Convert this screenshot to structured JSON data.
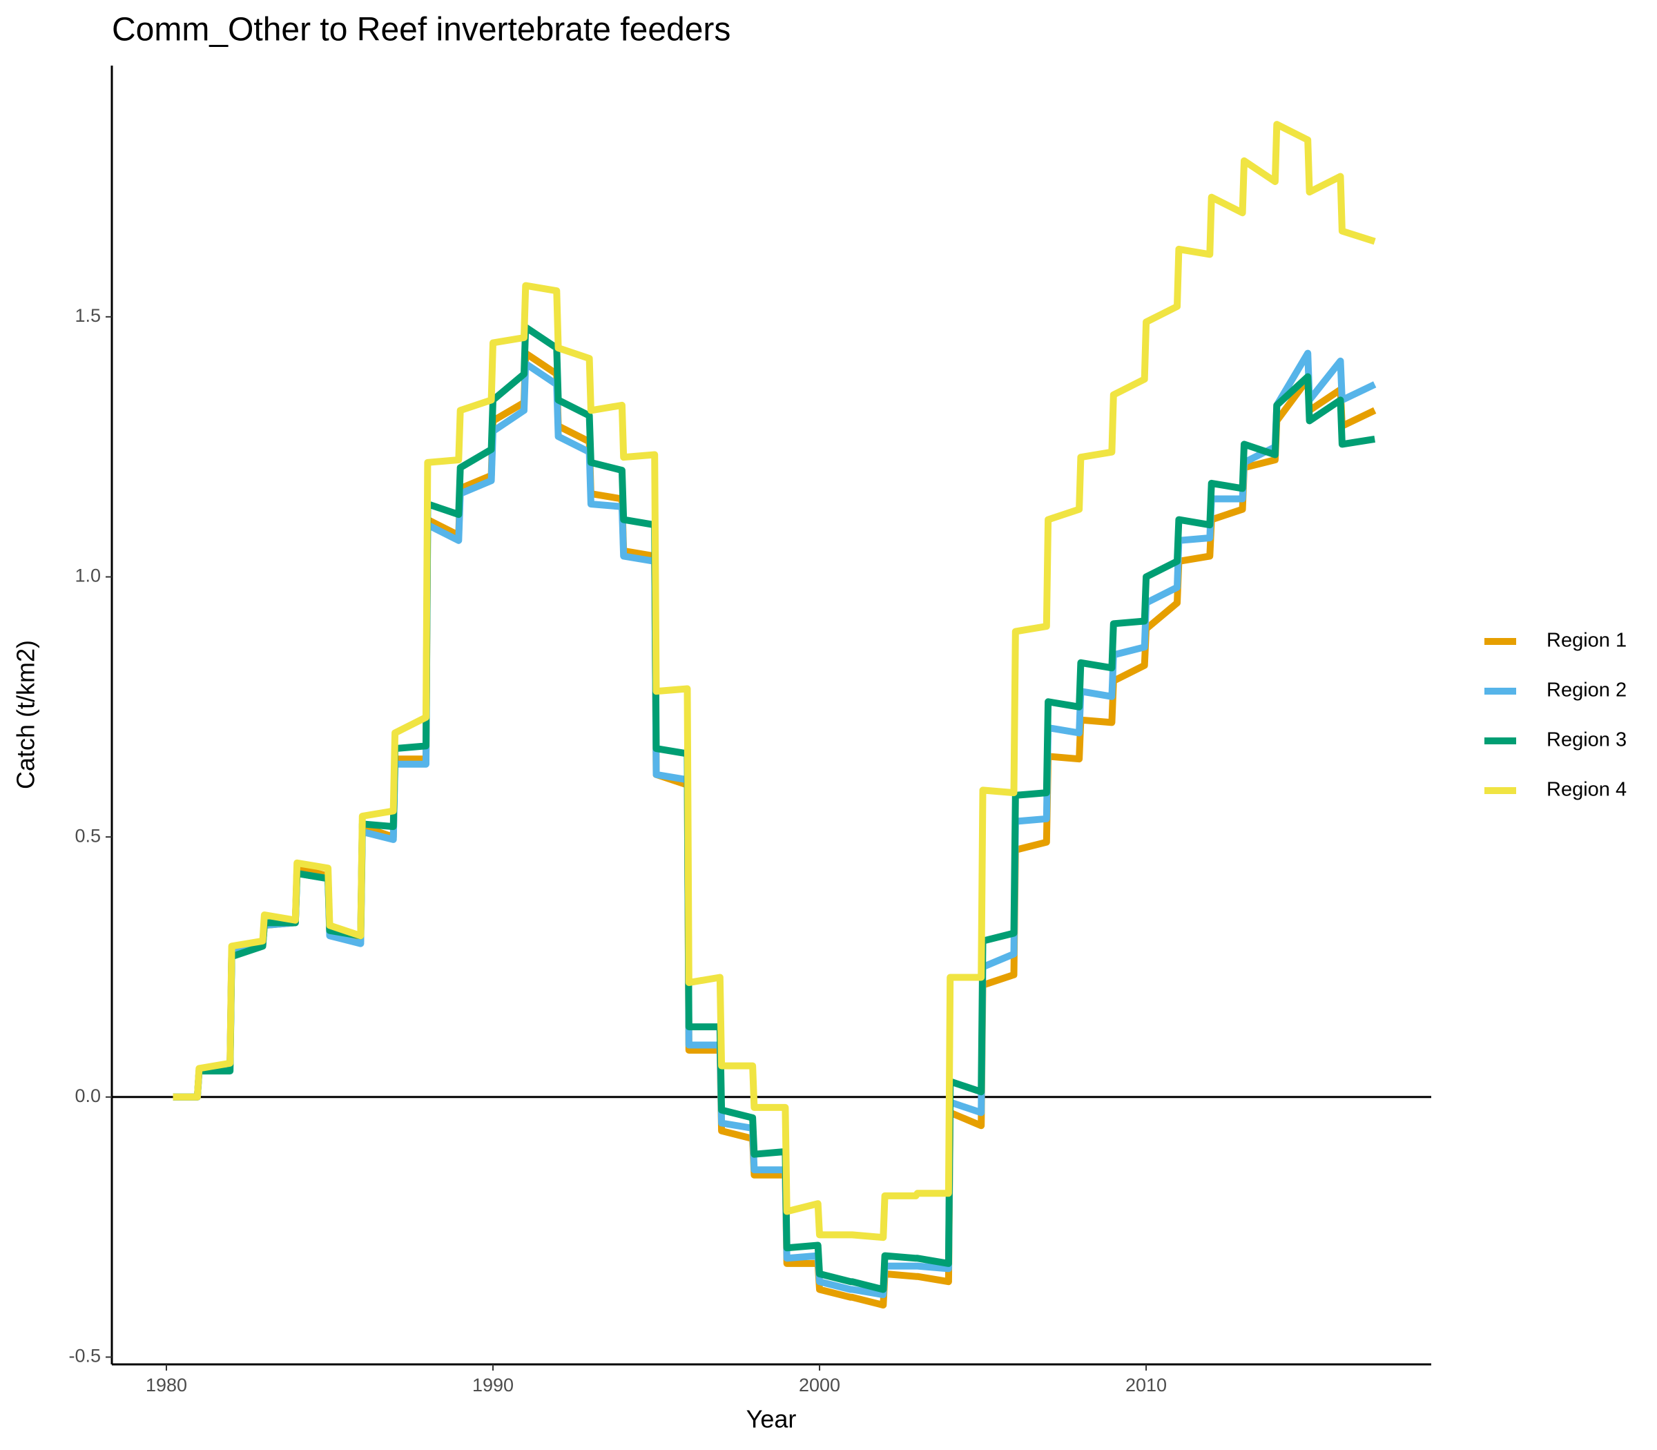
{
  "chart_data": {
    "type": "line",
    "title": "Comm_Other to Reef invertebrate feeders",
    "x_label": "Year",
    "y_label": "Catch (t/km2)",
    "xlim": [
      1978.33,
      2018.73
    ],
    "ylim": [
      -0.514,
      1.983
    ],
    "xticks": [
      1980,
      1990,
      2000,
      2010
    ],
    "yticks": [
      -0.5,
      {
        "value": 0,
        "label": "0.0"
      },
      0.5,
      {
        "value": 1,
        "label": "1.0"
      },
      1.5
    ],
    "grid": false,
    "legend": "right",
    "x": [
      1980.2,
      1980.95,
      1981,
      1981.95,
      1982,
      1982.95,
      1983,
      1983.95,
      1984,
      1984.95,
      1985,
      1985.95,
      1986,
      1986.95,
      1987,
      1987.95,
      1988,
      1988.95,
      1989,
      1989.95,
      1990,
      1990.95,
      1991,
      1991.95,
      1992,
      1992.95,
      1993,
      1993.95,
      1994,
      1994.95,
      1995,
      1995.95,
      1996,
      1996.95,
      1997,
      1997.95,
      1998,
      1998.95,
      1999,
      1999.95,
      2000,
      2000.95,
      2001,
      2001.95,
      2002,
      2002.95,
      2003,
      2003.95,
      2004,
      2004.95,
      2005,
      2005.95,
      2006,
      2006.95,
      2007,
      2007.95,
      2008,
      2008.95,
      2009,
      2009.95,
      2010,
      2010.95,
      2011,
      2011.95,
      2012,
      2012.95,
      2013,
      2013.95,
      2014,
      2014.95,
      2015,
      2015.95,
      2016,
      2017
    ],
    "series": [
      {
        "name": "Region 1",
        "color": "#E69F00",
        "values": [
          0,
          0,
          0.05,
          0.06,
          0.28,
          0.29,
          0.33,
          0.335,
          0.44,
          0.425,
          0.315,
          0.3,
          0.52,
          0.5,
          0.65,
          0.65,
          1.11,
          1.08,
          1.17,
          1.195,
          1.3,
          1.335,
          1.43,
          1.39,
          1.29,
          1.26,
          1.16,
          1.15,
          1.05,
          1.04,
          0.62,
          0.6,
          0.09,
          0.09,
          -0.065,
          -0.08,
          -0.15,
          -0.15,
          -0.32,
          -0.32,
          -0.37,
          -0.385,
          -0.385,
          -0.4,
          -0.34,
          -0.345,
          -0.345,
          -0.355,
          -0.03,
          -0.055,
          0.215,
          0.235,
          0.475,
          0.49,
          0.655,
          0.65,
          0.725,
          0.72,
          0.8,
          0.83,
          0.9,
          0.95,
          1.03,
          1.04,
          1.11,
          1.13,
          1.21,
          1.225,
          1.3,
          1.38,
          1.32,
          1.36,
          1.29,
          1.32
        ]
      },
      {
        "name": "Region 2",
        "color": "#56B4E9",
        "values": [
          0,
          0,
          0.05,
          0.06,
          0.28,
          0.29,
          0.33,
          0.335,
          0.43,
          0.42,
          0.31,
          0.295,
          0.51,
          0.495,
          0.64,
          0.64,
          1.1,
          1.07,
          1.16,
          1.185,
          1.28,
          1.32,
          1.41,
          1.37,
          1.27,
          1.24,
          1.14,
          1.135,
          1.04,
          1.03,
          0.62,
          0.61,
          0.1,
          0.1,
          -0.05,
          -0.06,
          -0.14,
          -0.14,
          -0.31,
          -0.305,
          -0.355,
          -0.37,
          -0.37,
          -0.38,
          -0.325,
          -0.325,
          -0.325,
          -0.33,
          -0.01,
          -0.03,
          0.25,
          0.275,
          0.53,
          0.535,
          0.71,
          0.7,
          0.78,
          0.77,
          0.85,
          0.865,
          0.95,
          0.98,
          1.07,
          1.075,
          1.15,
          1.15,
          1.22,
          1.25,
          1.33,
          1.43,
          1.34,
          1.415,
          1.34,
          1.37
        ]
      },
      {
        "name": "Region 3",
        "color": "#009E73",
        "values": [
          0,
          0,
          0.05,
          0.05,
          0.27,
          0.29,
          0.335,
          0.335,
          0.43,
          0.42,
          0.32,
          0.31,
          0.525,
          0.52,
          0.67,
          0.675,
          1.14,
          1.12,
          1.21,
          1.245,
          1.34,
          1.39,
          1.48,
          1.44,
          1.34,
          1.31,
          1.22,
          1.205,
          1.11,
          1.1,
          0.67,
          0.66,
          0.135,
          0.135,
          -0.025,
          -0.04,
          -0.11,
          -0.105,
          -0.29,
          -0.285,
          -0.34,
          -0.355,
          -0.355,
          -0.37,
          -0.305,
          -0.31,
          -0.31,
          -0.32,
          0.03,
          0.01,
          0.3,
          0.315,
          0.58,
          0.585,
          0.76,
          0.75,
          0.835,
          0.825,
          0.91,
          0.915,
          1.0,
          1.03,
          1.11,
          1.1,
          1.18,
          1.17,
          1.255,
          1.235,
          1.33,
          1.385,
          1.3,
          1.34,
          1.255,
          1.265
        ]
      },
      {
        "name": "Region 4",
        "color": "#F0E442",
        "values": [
          0,
          0,
          0.055,
          0.065,
          0.29,
          0.3,
          0.35,
          0.34,
          0.45,
          0.44,
          0.33,
          0.31,
          0.54,
          0.55,
          0.7,
          0.73,
          1.22,
          1.225,
          1.32,
          1.34,
          1.45,
          1.46,
          1.56,
          1.55,
          1.44,
          1.42,
          1.32,
          1.33,
          1.23,
          1.235,
          0.78,
          0.785,
          0.22,
          0.23,
          0.06,
          0.06,
          -0.02,
          -0.02,
          -0.22,
          -0.205,
          -0.265,
          -0.265,
          -0.265,
          -0.27,
          -0.19,
          -0.19,
          -0.185,
          -0.185,
          0.23,
          0.23,
          0.59,
          0.585,
          0.895,
          0.905,
          1.11,
          1.13,
          1.23,
          1.24,
          1.35,
          1.38,
          1.49,
          1.52,
          1.63,
          1.62,
          1.73,
          1.7,
          1.8,
          1.76,
          1.87,
          1.84,
          1.74,
          1.77,
          1.665,
          1.645
        ]
      }
    ]
  }
}
